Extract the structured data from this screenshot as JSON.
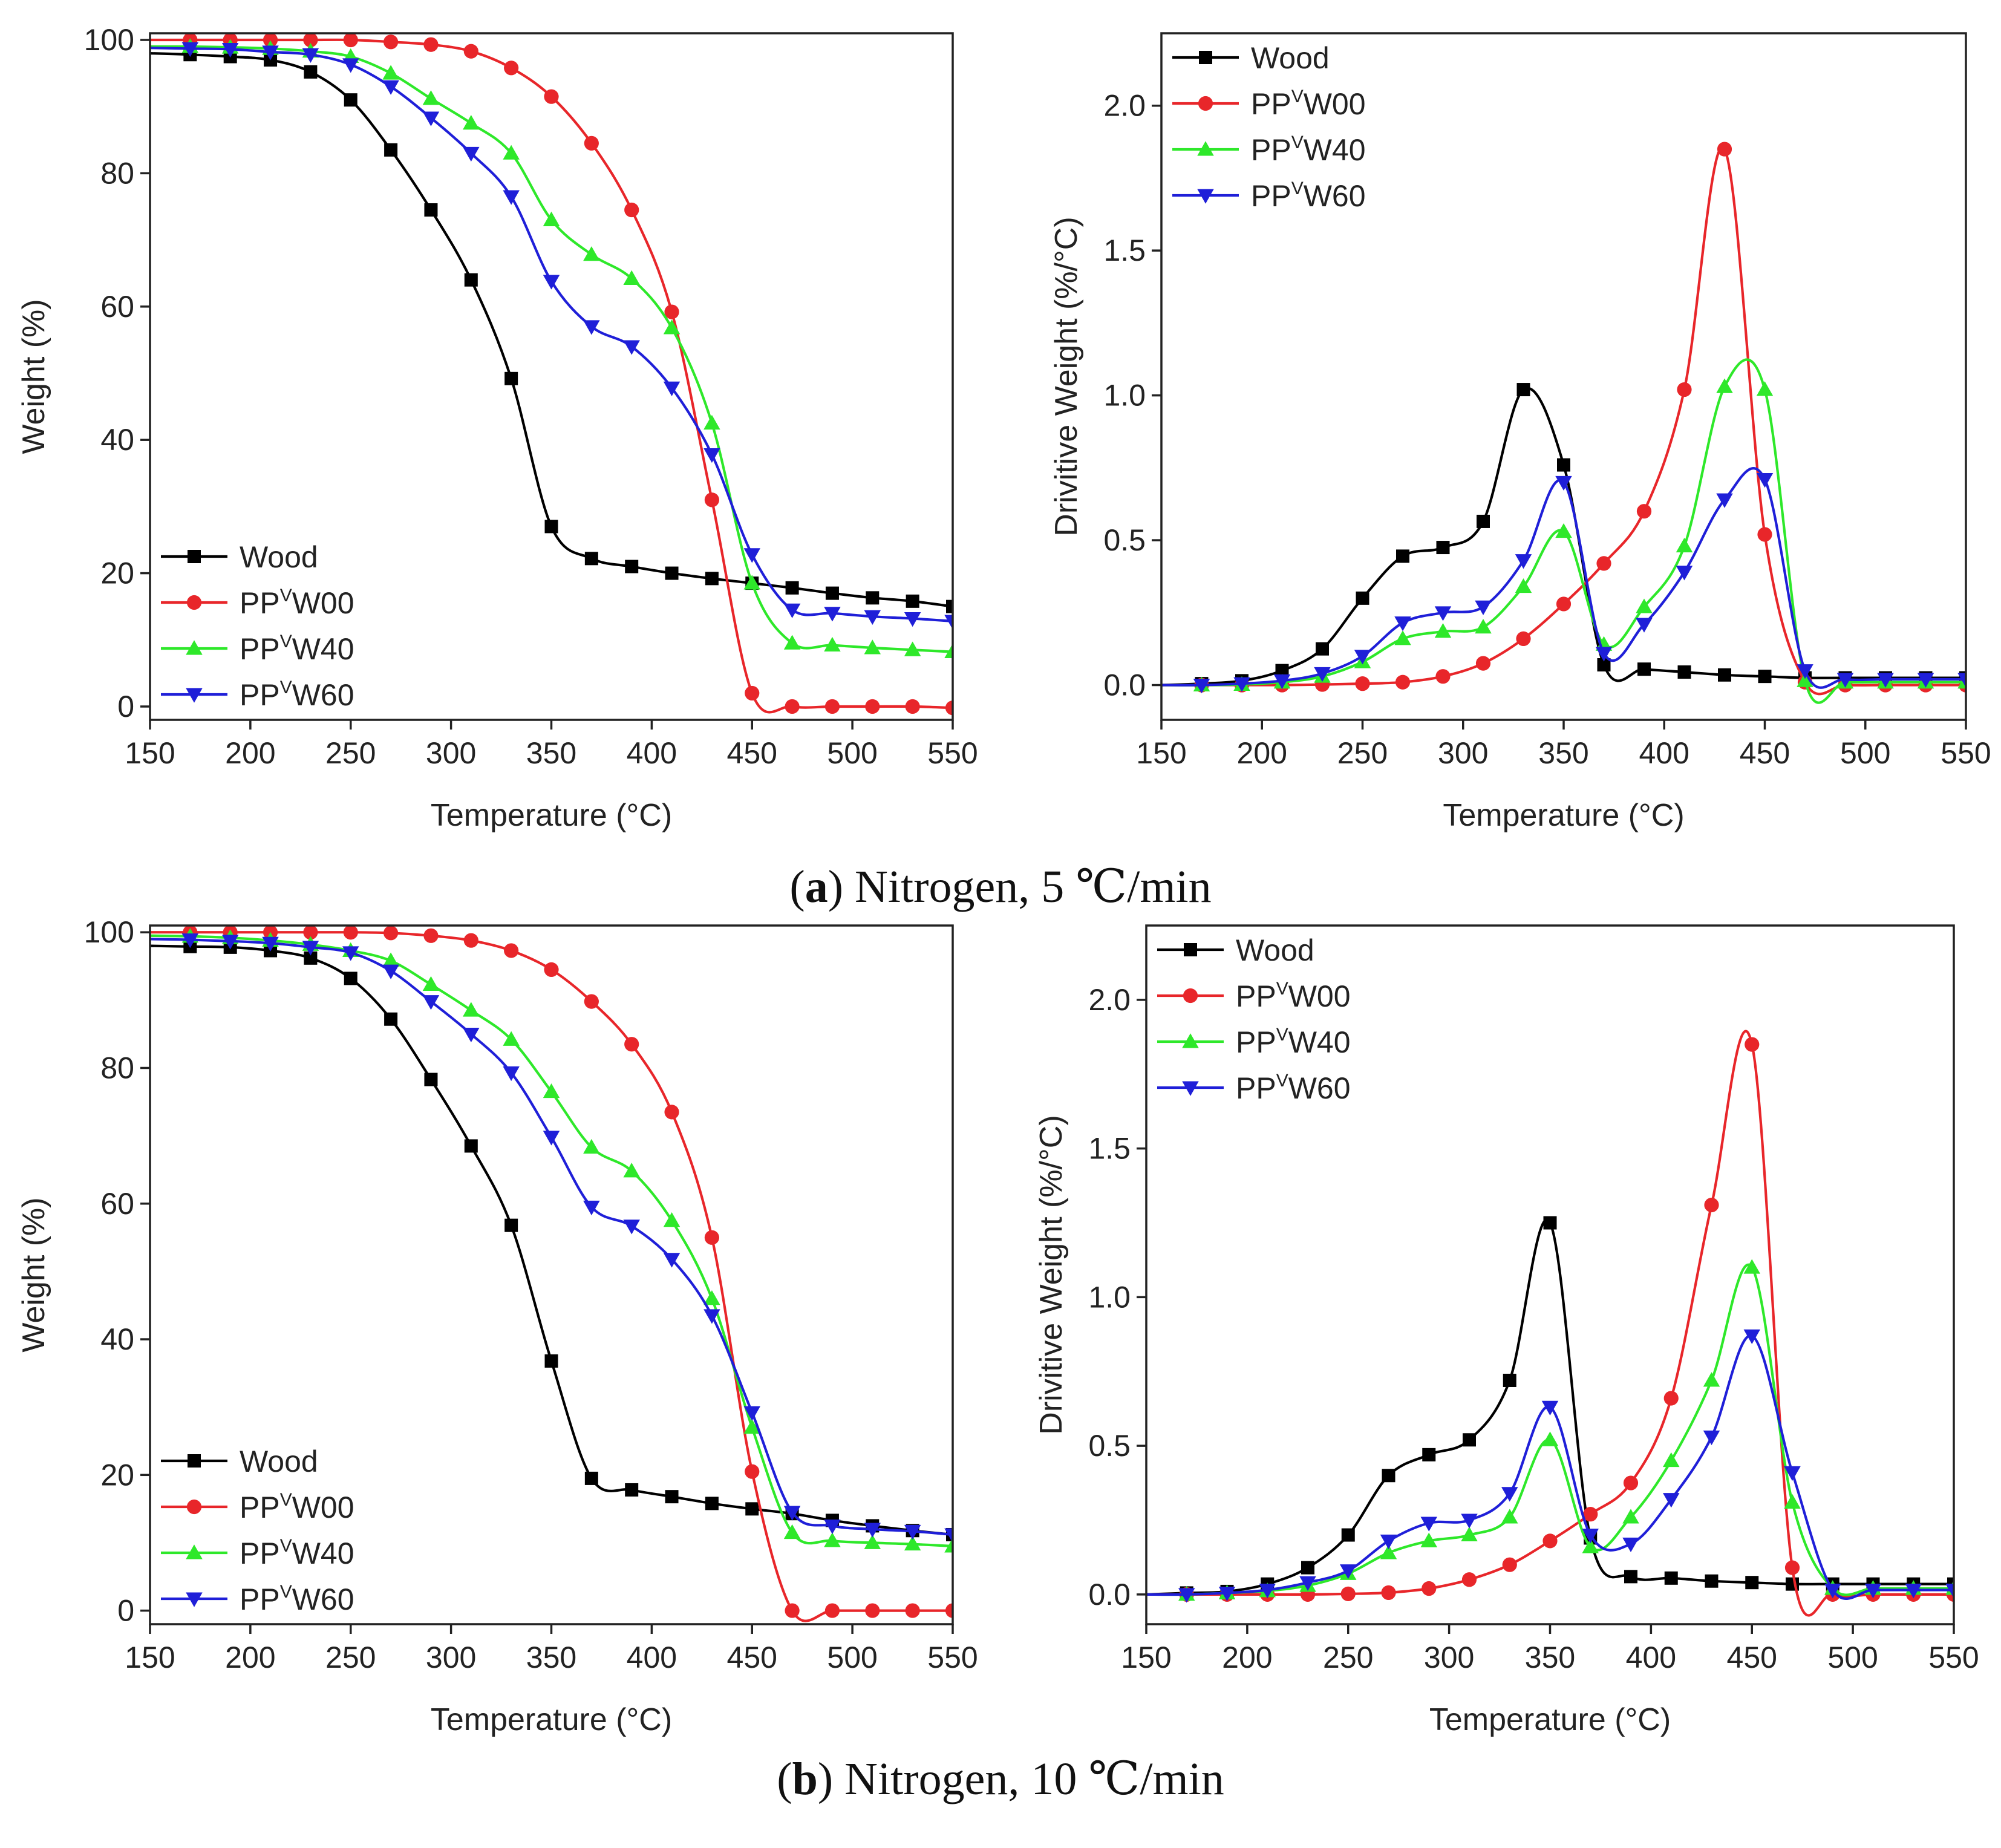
{
  "figure": {
    "caption_a": {
      "letter": "a",
      "text": ") Nitrogen, 5 ℃/min"
    },
    "caption_b": {
      "letter": "b",
      "text": ") Nitrogen, 10 ℃/min"
    }
  },
  "colors": {
    "Wood": "#000000",
    "PPVW00": "#e8262a",
    "PPVW40": "#2ee82a",
    "PPVW60": "#1f1fd8"
  },
  "legend": [
    {
      "key": "Wood",
      "base": "Wood",
      "sup": "",
      "rest": "",
      "marker": "square"
    },
    {
      "key": "PPVW00",
      "base": "PP",
      "sup": "V",
      "rest": "W00",
      "marker": "circle"
    },
    {
      "key": "PPVW40",
      "base": "PP",
      "sup": "V",
      "rest": "W40",
      "marker": "triangle-up"
    },
    {
      "key": "PPVW60",
      "base": "PP",
      "sup": "V",
      "rest": "W60",
      "marker": "triangle-down"
    }
  ],
  "chart_data": [
    {
      "id": "a-tg",
      "type": "line",
      "panel": "a",
      "legend_position": "bottom-left",
      "xlabel": "Temperature (°C)",
      "ylabel": "Weight (%)",
      "xlim": [
        150,
        550
      ],
      "ylim": [
        -2,
        101
      ],
      "xticks": [
        150,
        200,
        250,
        300,
        350,
        400,
        450,
        500,
        550
      ],
      "yticks": [
        0,
        20,
        40,
        60,
        80,
        100
      ],
      "x": [
        150,
        170,
        190,
        210,
        230,
        250,
        270,
        290,
        310,
        330,
        350,
        370,
        390,
        410,
        430,
        450,
        470,
        490,
        510,
        530,
        550
      ],
      "series": [
        {
          "name": "Wood",
          "values": [
            98,
            97.8,
            97.5,
            97,
            95.2,
            91,
            83.5,
            74.5,
            64,
            49.2,
            27,
            22.2,
            21,
            20,
            19.2,
            18.5,
            17.8,
            17,
            16.3,
            15.8,
            15
          ]
        },
        {
          "name": "PPVW00",
          "values": [
            100,
            100,
            100,
            100,
            100,
            100,
            99.7,
            99.3,
            98.3,
            95.8,
            91.5,
            84.5,
            74.5,
            59.2,
            31,
            2,
            0,
            0,
            0,
            0,
            -0.2
          ]
        },
        {
          "name": "PPVW40",
          "values": [
            99,
            99,
            98.9,
            98.7,
            98.3,
            97.5,
            95,
            91.2,
            87.5,
            83,
            73,
            67.8,
            64.2,
            56.8,
            42.5,
            18.5,
            9.5,
            9.2,
            8.8,
            8.5,
            8.2
          ]
        },
        {
          "name": "PPVW60",
          "values": [
            98.8,
            98.7,
            98.6,
            98.2,
            97.8,
            96.3,
            93,
            88.3,
            83,
            76.5,
            63.8,
            57,
            54,
            47.8,
            37.8,
            22.8,
            14.5,
            14,
            13.5,
            13.2,
            12.8
          ]
        }
      ]
    },
    {
      "id": "a-dtg",
      "type": "line",
      "panel": "a",
      "legend_position": "top-left",
      "xlabel": "Temperature (°C)",
      "ylabel": "Drivitive Weight (%/°C)",
      "xlim": [
        150,
        550
      ],
      "ylim": [
        -0.12,
        2.25
      ],
      "xticks": [
        150,
        200,
        250,
        300,
        350,
        400,
        450,
        500,
        550
      ],
      "yticks": [
        0.0,
        0.5,
        1.0,
        1.5,
        2.0
      ],
      "x": [
        150,
        170,
        190,
        210,
        230,
        250,
        270,
        290,
        310,
        330,
        350,
        370,
        390,
        410,
        430,
        450,
        470,
        490,
        510,
        530,
        550
      ],
      "series": [
        {
          "name": "Wood",
          "values": [
            0,
            0.005,
            0.015,
            0.05,
            0.125,
            0.3,
            0.445,
            0.475,
            0.565,
            1.02,
            0.76,
            0.07,
            0.055,
            0.045,
            0.035,
            0.03,
            0.025,
            0.025,
            0.025,
            0.025,
            0.025
          ]
        },
        {
          "name": "PPVW00",
          "values": [
            0,
            0,
            0,
            0,
            0.002,
            0.005,
            0.01,
            0.03,
            0.075,
            0.16,
            0.28,
            0.42,
            0.6,
            1.02,
            1.85,
            0.52,
            0.01,
            0,
            0,
            0,
            0
          ]
        },
        {
          "name": "PPVW40",
          "values": [
            0,
            0,
            0.002,
            0.01,
            0.03,
            0.08,
            0.16,
            0.185,
            0.2,
            0.34,
            0.53,
            0.14,
            0.27,
            0.48,
            1.03,
            1.02,
            0.015,
            0.01,
            0.01,
            0.01,
            0.01
          ]
        },
        {
          "name": "PPVW60",
          "values": [
            0,
            0,
            0.005,
            0.015,
            0.04,
            0.1,
            0.215,
            0.25,
            0.27,
            0.43,
            0.7,
            0.11,
            0.21,
            0.39,
            0.64,
            0.71,
            0.05,
            0.02,
            0.02,
            0.02,
            0.02
          ]
        }
      ]
    },
    {
      "id": "b-tg",
      "type": "line",
      "panel": "b",
      "legend_position": "bottom-left",
      "xlabel": "Temperature (°C)",
      "ylabel": "Weight (%)",
      "xlim": [
        150,
        550
      ],
      "ylim": [
        -2,
        101
      ],
      "xticks": [
        150,
        200,
        250,
        300,
        350,
        400,
        450,
        500,
        550
      ],
      "yticks": [
        0,
        20,
        40,
        60,
        80,
        100
      ],
      "x": [
        150,
        170,
        190,
        210,
        230,
        250,
        270,
        290,
        310,
        330,
        350,
        370,
        390,
        410,
        430,
        450,
        470,
        490,
        510,
        530,
        550
      ],
      "series": [
        {
          "name": "Wood",
          "values": [
            98,
            97.9,
            97.8,
            97.3,
            96.2,
            93.2,
            87.2,
            78.3,
            68.5,
            56.8,
            36.8,
            19.5,
            17.8,
            16.8,
            15.8,
            15,
            14.3,
            13.3,
            12.5,
            11.8,
            11.2
          ]
        },
        {
          "name": "PPVW00",
          "values": [
            100,
            100,
            100,
            100,
            100,
            100,
            99.9,
            99.5,
            98.8,
            97.3,
            94.5,
            89.8,
            83.5,
            73.5,
            55,
            20.5,
            0,
            0,
            0,
            0,
            0
          ]
        },
        {
          "name": "PPVW40",
          "values": [
            99.5,
            99.4,
            99.2,
            98.8,
            98.2,
            97.3,
            95.8,
            92.3,
            88.5,
            84.2,
            76.5,
            68.3,
            64.8,
            57.5,
            46,
            27,
            11.5,
            10.3,
            10,
            9.8,
            9.5
          ]
        },
        {
          "name": "PPVW60",
          "values": [
            99,
            98.9,
            98.7,
            98.4,
            97.8,
            97,
            94.3,
            89.8,
            85,
            79.3,
            69.8,
            59.5,
            56.7,
            51.8,
            43.5,
            29.2,
            14.5,
            12.5,
            12,
            11.7,
            11.2
          ]
        }
      ]
    },
    {
      "id": "b-dtg",
      "type": "line",
      "panel": "b",
      "legend_position": "top-left",
      "xlabel": "Temperature (°C)",
      "ylabel": "Drivitive Weight (%/°C)",
      "xlim": [
        150,
        550
      ],
      "ylim": [
        -0.1,
        2.25
      ],
      "xticks": [
        150,
        200,
        250,
        300,
        350,
        400,
        450,
        500,
        550
      ],
      "yticks": [
        0.0,
        0.5,
        1.0,
        1.5,
        2.0
      ],
      "x": [
        150,
        170,
        190,
        210,
        230,
        250,
        270,
        290,
        310,
        330,
        350,
        370,
        390,
        410,
        430,
        450,
        470,
        490,
        510,
        530,
        550
      ],
      "series": [
        {
          "name": "Wood",
          "values": [
            0,
            0.005,
            0.01,
            0.035,
            0.09,
            0.2,
            0.4,
            0.47,
            0.52,
            0.72,
            1.25,
            0.19,
            0.06,
            0.055,
            0.045,
            0.04,
            0.035,
            0.035,
            0.035,
            0.035,
            0.035
          ]
        },
        {
          "name": "PPVW00",
          "values": [
            0,
            0,
            0,
            0,
            0,
            0.002,
            0.006,
            0.02,
            0.05,
            0.1,
            0.18,
            0.27,
            0.375,
            0.66,
            1.31,
            1.85,
            0.09,
            0,
            0,
            0,
            0
          ]
        },
        {
          "name": "PPVW40",
          "values": [
            0,
            0,
            0.005,
            0.012,
            0.03,
            0.07,
            0.14,
            0.18,
            0.2,
            0.26,
            0.52,
            0.16,
            0.26,
            0.45,
            0.72,
            1.1,
            0.31,
            0.02,
            0.02,
            0.02,
            0.02
          ]
        },
        {
          "name": "PPVW60",
          "values": [
            0,
            0,
            0.005,
            0.015,
            0.04,
            0.08,
            0.18,
            0.24,
            0.25,
            0.34,
            0.63,
            0.2,
            0.17,
            0.32,
            0.53,
            0.87,
            0.41,
            0.015,
            0.015,
            0.015,
            0.015
          ]
        }
      ]
    }
  ]
}
